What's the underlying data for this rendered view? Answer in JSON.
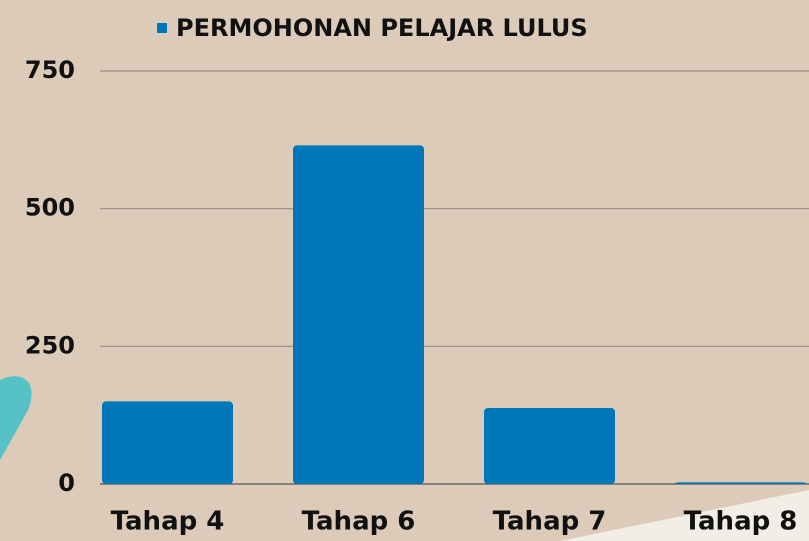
{
  "chart_data": {
    "type": "bar",
    "categories": [
      "Tahap 4",
      "Tahap 6",
      "Tahap 7",
      "Tahap 8"
    ],
    "series": [
      {
        "name": "PERMOHONAN PELAJAR LULUS",
        "color": "#0077b6",
        "values": [
          150,
          615,
          138,
          3
        ]
      }
    ],
    "ylim": [
      0,
      750
    ],
    "yticks": [
      0,
      250,
      500,
      750
    ],
    "grid": true
  }
}
